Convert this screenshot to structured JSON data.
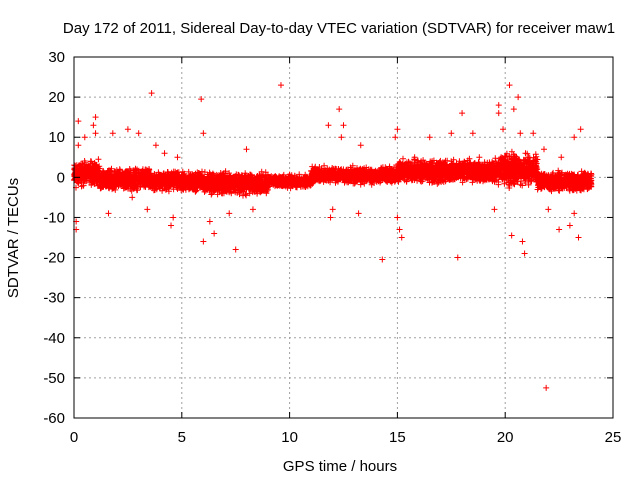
{
  "chart_data": {
    "type": "scatter",
    "title": "Day 172 of 2011, Sidereal Day-to-day VTEC variation (SDTVAR) for receiver maw1",
    "xlabel": "GPS time / hours",
    "ylabel": "SDTVAR / TECUs",
    "xlim": [
      0,
      25
    ],
    "ylim": [
      -60,
      30
    ],
    "xticks": [
      0,
      5,
      10,
      15,
      20,
      25
    ],
    "yticks": [
      -60,
      -50,
      -40,
      -30,
      -20,
      -10,
      0,
      10,
      20,
      30
    ],
    "grid": true,
    "marker": "+",
    "color": "#ff0000",
    "series": [
      {
        "name": "SDTVAR",
        "dense_band": {
          "x_range": [
            0,
            24
          ],
          "segments": [
            {
              "x": [
                0.0,
                1.2
              ],
              "y_range": [
                -3,
                5
              ]
            },
            {
              "x": [
                1.2,
                3.5
              ],
              "y_range": [
                -4,
                3
              ]
            },
            {
              "x": [
                3.5,
                6.0
              ],
              "y_range": [
                -4,
                2
              ]
            },
            {
              "x": [
                6.0,
                9.0
              ],
              "y_range": [
                -5,
                2
              ]
            },
            {
              "x": [
                9.0,
                11.0
              ],
              "y_range": [
                -3,
                1
              ]
            },
            {
              "x": [
                11.0,
                15.0
              ],
              "y_range": [
                -2,
                3
              ]
            },
            {
              "x": [
                15.0,
                19.5
              ],
              "y_range": [
                -2,
                5
              ]
            },
            {
              "x": [
                19.5,
                21.5
              ],
              "y_range": [
                -3,
                7
              ]
            },
            {
              "x": [
                21.5,
                24.0
              ],
              "y_range": [
                -4,
                2
              ]
            }
          ]
        },
        "outliers": [
          [
            0.1,
            -13
          ],
          [
            0.1,
            -11
          ],
          [
            0.2,
            14
          ],
          [
            0.2,
            8
          ],
          [
            0.5,
            10
          ],
          [
            0.9,
            13
          ],
          [
            1.0,
            15
          ],
          [
            1.0,
            11
          ],
          [
            1.6,
            -9
          ],
          [
            1.8,
            11
          ],
          [
            2.5,
            12
          ],
          [
            2.7,
            -5
          ],
          [
            3.0,
            11
          ],
          [
            3.4,
            -8
          ],
          [
            3.6,
            21
          ],
          [
            3.8,
            8
          ],
          [
            4.2,
            6
          ],
          [
            4.5,
            -12
          ],
          [
            4.6,
            -10
          ],
          [
            4.8,
            5
          ],
          [
            5.9,
            19.5
          ],
          [
            6.0,
            11
          ],
          [
            6.0,
            -16
          ],
          [
            6.3,
            -11
          ],
          [
            6.5,
            -14
          ],
          [
            7.5,
            -18
          ],
          [
            7.2,
            -9
          ],
          [
            8.0,
            7
          ],
          [
            8.3,
            -8
          ],
          [
            9.6,
            23
          ],
          [
            11.8,
            13
          ],
          [
            11.9,
            -10
          ],
          [
            12.0,
            -8
          ],
          [
            12.3,
            17
          ],
          [
            12.5,
            13
          ],
          [
            12.4,
            10
          ],
          [
            13.3,
            8
          ],
          [
            13.2,
            -9
          ],
          [
            14.3,
            -20.5
          ],
          [
            15.0,
            12
          ],
          [
            14.9,
            10
          ],
          [
            15.1,
            -13
          ],
          [
            15.2,
            -15
          ],
          [
            15.0,
            -10
          ],
          [
            15.8,
            5
          ],
          [
            16.5,
            10
          ],
          [
            17.8,
            -20
          ],
          [
            18.0,
            16
          ],
          [
            17.5,
            11
          ],
          [
            18.5,
            11
          ],
          [
            18.8,
            5
          ],
          [
            19.5,
            -8
          ],
          [
            19.7,
            18
          ],
          [
            19.7,
            16
          ],
          [
            19.9,
            12
          ],
          [
            20.2,
            23
          ],
          [
            20.4,
            17
          ],
          [
            20.6,
            20
          ],
          [
            20.3,
            -14.5
          ],
          [
            20.7,
            11
          ],
          [
            20.8,
            -16
          ],
          [
            20.9,
            -19
          ],
          [
            21.3,
            11
          ],
          [
            21.8,
            7
          ],
          [
            21.9,
            -52.5
          ],
          [
            22.0,
            -8
          ],
          [
            22.5,
            -13
          ],
          [
            22.6,
            5
          ],
          [
            23.0,
            -12
          ],
          [
            23.2,
            10
          ],
          [
            23.4,
            -15
          ],
          [
            23.5,
            12
          ],
          [
            23.2,
            -9
          ]
        ]
      }
    ]
  }
}
